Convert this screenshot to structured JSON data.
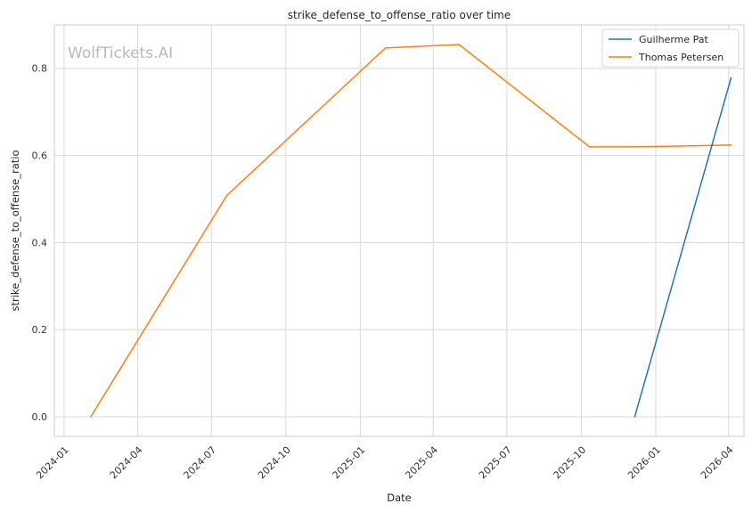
{
  "chart_data": {
    "type": "line",
    "title": "strike_defense_to_offense_ratio over time",
    "xlabel": "Date",
    "ylabel": "strike_defense_to_offense_ratio",
    "watermark": "WolfTickets.AI",
    "xlim": [
      "2023-12-20",
      "2026-04-20"
    ],
    "ylim": [
      -0.045,
      0.9
    ],
    "grid": true,
    "legend_position": "top-right",
    "x_ticks": [
      {
        "date": "2024-01-01",
        "label": "2024-01"
      },
      {
        "date": "2024-04-01",
        "label": "2024-04"
      },
      {
        "date": "2024-07-01",
        "label": "2024-07"
      },
      {
        "date": "2024-10-01",
        "label": "2024-10"
      },
      {
        "date": "2025-01-01",
        "label": "2025-01"
      },
      {
        "date": "2025-04-01",
        "label": "2025-04"
      },
      {
        "date": "2025-07-01",
        "label": "2025-07"
      },
      {
        "date": "2025-10-01",
        "label": "2025-10"
      },
      {
        "date": "2026-01-01",
        "label": "2026-01"
      },
      {
        "date": "2026-04-01",
        "label": "2026-04"
      }
    ],
    "y_ticks": [
      {
        "value": 0.0,
        "label": "0.0"
      },
      {
        "value": 0.2,
        "label": "0.2"
      },
      {
        "value": 0.4,
        "label": "0.4"
      },
      {
        "value": 0.6,
        "label": "0.6"
      },
      {
        "value": 0.8,
        "label": "0.8"
      }
    ],
    "series": [
      {
        "name": "Guilherme Pat",
        "color": "#1f77b4",
        "points": [
          {
            "date": "2025-12-06",
            "value": 0.0
          },
          {
            "date": "2026-04-04",
            "value": 0.778
          }
        ]
      },
      {
        "name": "Thomas Petersen",
        "color": "#ff7f0e",
        "points": [
          {
            "date": "2024-02-03",
            "value": 0.0
          },
          {
            "date": "2024-07-20",
            "value": 0.508
          },
          {
            "date": "2025-02-01",
            "value": 0.847
          },
          {
            "date": "2025-05-03",
            "value": 0.855
          },
          {
            "date": "2025-10-11",
            "value": 0.62
          },
          {
            "date": "2025-12-06",
            "value": 0.62
          },
          {
            "date": "2026-04-04",
            "value": 0.624
          }
        ]
      }
    ]
  }
}
